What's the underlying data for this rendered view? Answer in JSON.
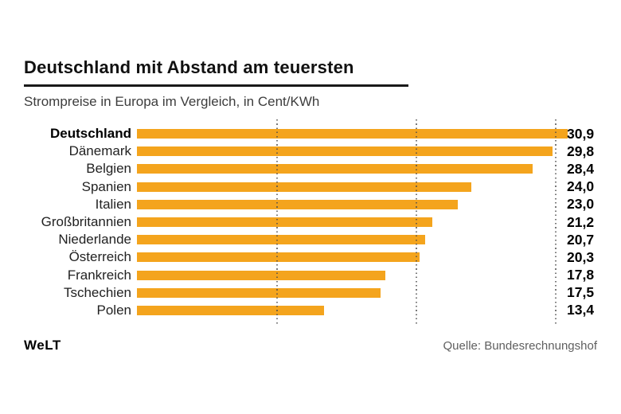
{
  "header": {
    "title": "Deutschland mit Abstand am teuersten",
    "subtitle": "Strompreise in Europa im Vergleich, in Cent/KWh"
  },
  "chart_data": {
    "type": "bar",
    "orientation": "horizontal",
    "unit": "Cent/KWh",
    "categories": [
      "Deutschland",
      "Dänemark",
      "Belgien",
      "Spanien",
      "Italien",
      "Großbritannien",
      "Niederlande",
      "Österreich",
      "Frankreich",
      "Tschechien",
      "Polen"
    ],
    "values": [
      30.9,
      29.8,
      28.4,
      24.0,
      23.0,
      21.2,
      20.7,
      20.3,
      17.8,
      17.5,
      13.4
    ],
    "value_labels": [
      "30,9",
      "29,8",
      "28,4",
      "24,0",
      "23,0",
      "21,2",
      "20,7",
      "20,3",
      "17,8",
      "17,5",
      "13,4"
    ],
    "emphasized_category": "Deutschland",
    "bar_color": "#F4A41D",
    "gridlines": [
      10,
      20,
      30
    ],
    "xlim": [
      0,
      31
    ],
    "grid_style": "dotted",
    "legend": "none"
  },
  "footer": {
    "brand": "WeLT",
    "source": "Quelle: Bundesrechnungshof"
  }
}
